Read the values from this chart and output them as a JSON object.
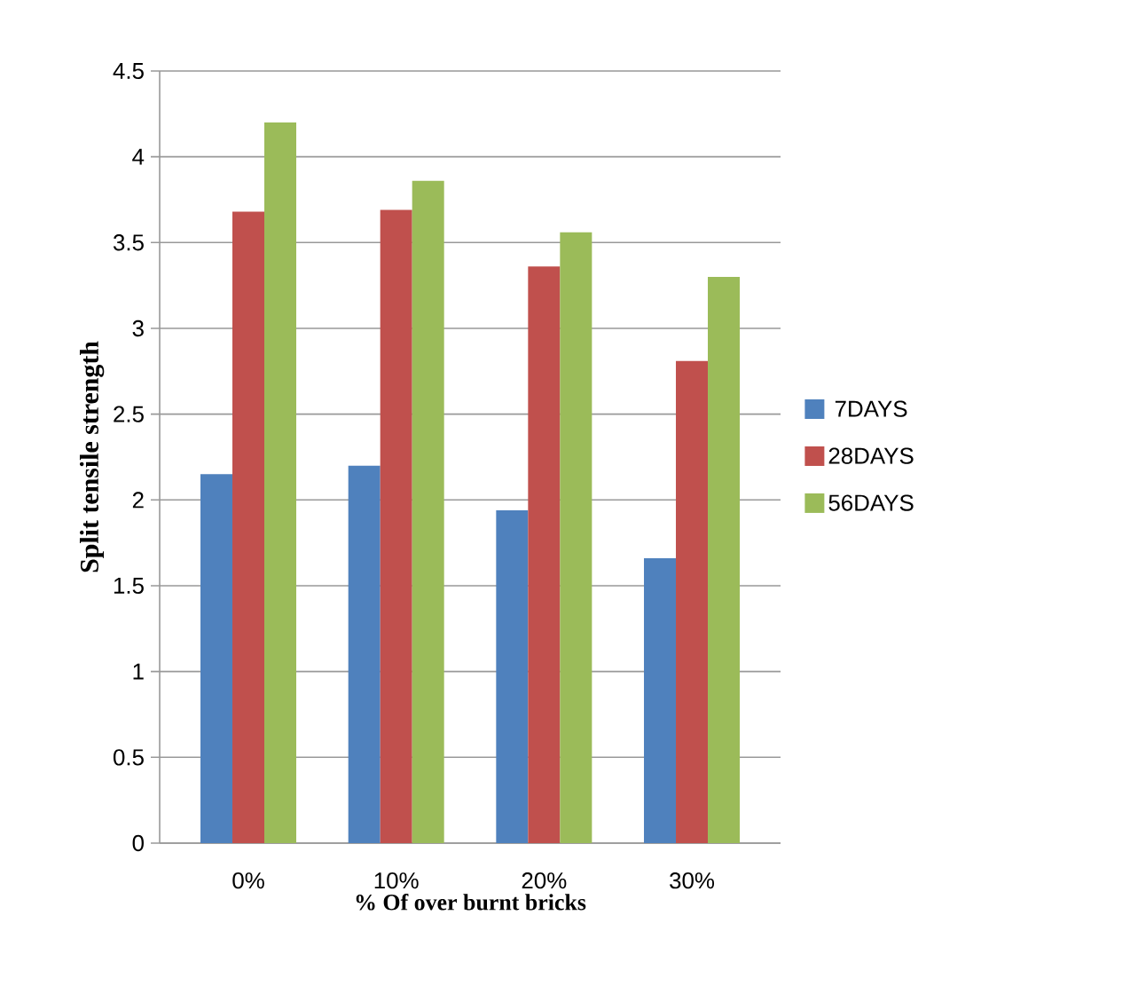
{
  "chart_data": {
    "type": "bar",
    "xlabel": "% Of over burnt bricks",
    "ylabel": "Split tensile strength",
    "categories": [
      "0%",
      "10%",
      "20%",
      "30%"
    ],
    "series": [
      {
        "name": "7DAYS",
        "color": "#4f81bd",
        "values": [
          2.15,
          2.2,
          1.94,
          1.66
        ]
      },
      {
        "name": "28DAYS",
        "color": "#c0504d",
        "values": [
          3.68,
          3.69,
          3.36,
          2.81
        ]
      },
      {
        "name": "56DAYS",
        "color": "#9bbb59",
        "values": [
          4.2,
          3.86,
          3.56,
          3.3
        ]
      }
    ],
    "ylim": [
      0,
      4.5
    ],
    "yticks": [
      0,
      0.5,
      1,
      1.5,
      2,
      2.5,
      3,
      3.5,
      4,
      4.5
    ],
    "grid": "y",
    "legend": "right"
  }
}
